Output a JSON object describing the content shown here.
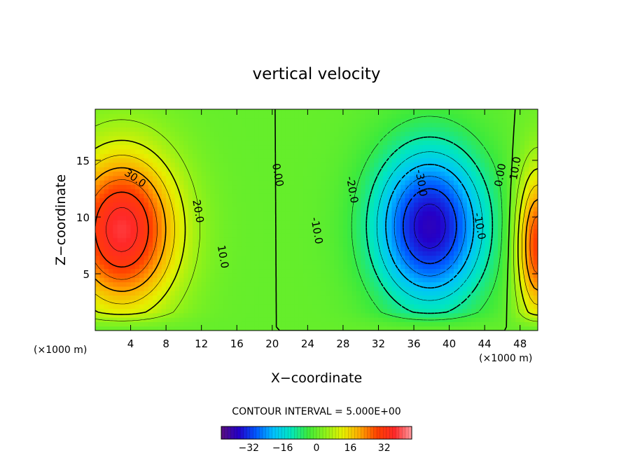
{
  "chart_data": {
    "type": "heatmap",
    "subtype": "filled contour",
    "title": "vertical velocity",
    "xlabel": "X−coordinate",
    "ylabel": "Z−coordinate",
    "x_unit_left": "(×1000 m)",
    "x_unit_right": "(×1000 m)",
    "xlim": [
      0,
      50
    ],
    "ylim": [
      0,
      19.5
    ],
    "x_ticks": [
      4,
      8,
      12,
      16,
      20,
      24,
      28,
      32,
      36,
      40,
      44,
      48
    ],
    "x_tick_labels": [
      "4",
      "8",
      "12",
      "16",
      "20",
      "24",
      "28",
      "32",
      "36",
      "40",
      "44",
      "48"
    ],
    "y_ticks": [
      5,
      10,
      15
    ],
    "y_tick_labels": [
      "5",
      "10",
      "15"
    ],
    "contour_interval_text": "CONTOUR INTERVAL = 5.000E+00",
    "contour_interval": 5,
    "contour_labels": [
      {
        "text": "30.0",
        "x": 4.5,
        "y": 13.4
      },
      {
        "text": "20.0",
        "x": 11.6,
        "y": 10.5
      },
      {
        "text": "10.0",
        "x": 14.4,
        "y": 6.5
      },
      {
        "text": "0.00",
        "x": 20.6,
        "y": 13.7
      },
      {
        "text": "-20.0",
        "x": 29.0,
        "y": 12.4
      },
      {
        "text": "-10.0",
        "x": 25.0,
        "y": 8.8
      },
      {
        "text": "-30.0",
        "x": 36.8,
        "y": 13.0
      },
      {
        "text": "-10.0",
        "x": 43.4,
        "y": 9.2
      },
      {
        "text": "0.00",
        "x": 45.8,
        "y": 13.7
      },
      {
        "text": "10.0",
        "x": 47.5,
        "y": 14.3
      }
    ],
    "field_extrema": [
      {
        "kind": "max",
        "value": 38,
        "x": 3.0,
        "y": 8.9
      },
      {
        "kind": "min",
        "value": -38,
        "x": 37.8,
        "y": 9.2
      },
      {
        "kind": "max",
        "value": 30,
        "x": 50.0,
        "y": 7.6
      }
    ],
    "colorbar": {
      "min": -45,
      "max": 45,
      "ticks": [
        -32,
        -16,
        0,
        16,
        32
      ],
      "tick_labels": [
        "−32",
        "−16",
        "0",
        "16",
        "32"
      ]
    },
    "colormap": [
      "#5a0e7e",
      "#2400c8",
      "#0058ff",
      "#00c0ff",
      "#00e6c0",
      "#3cea3c",
      "#8ef21a",
      "#e6f000",
      "#ffa800",
      "#ff4000",
      "#ff2828",
      "#ff9aa0"
    ],
    "grid": false
  }
}
